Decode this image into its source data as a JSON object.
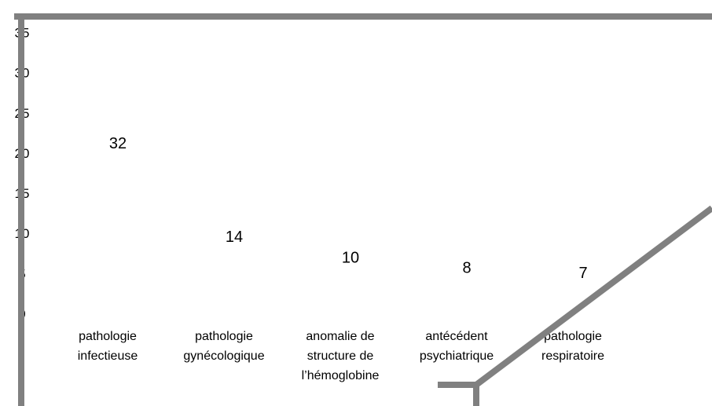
{
  "chart_data": {
    "type": "bar",
    "categories": [
      [
        "pathologie",
        "infectieuse"
      ],
      [
        "pathologie",
        "gynécologique"
      ],
      [
        "anomalie de",
        "structure de",
        "l’hémoglobine"
      ],
      [
        "antécédent",
        "psychiatrique"
      ],
      [
        "pathologie",
        "respiratoire"
      ]
    ],
    "values": [
      32,
      14,
      10,
      8,
      7
    ],
    "ylim": [
      0,
      35
    ],
    "yticks": [
      0,
      5,
      10,
      15,
      20,
      25,
      30,
      35
    ]
  }
}
